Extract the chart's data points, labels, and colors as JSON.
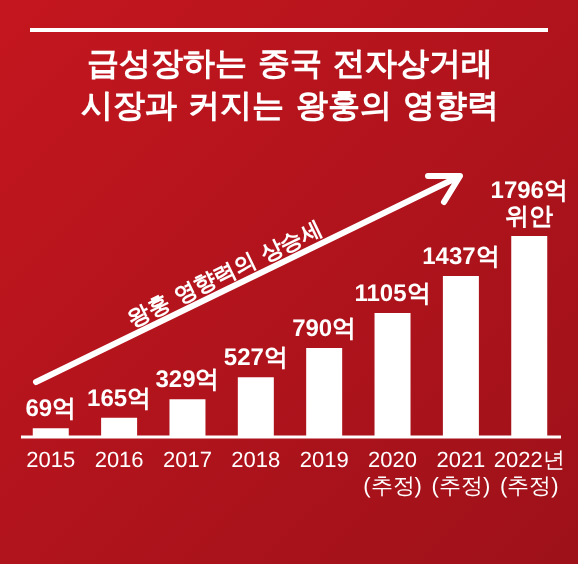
{
  "chart_data": {
    "type": "bar",
    "title": "급성장하는 중국 전자상거래\n시장과 커지는 왕훙의 영향력",
    "categories": [
      "2015",
      "2016",
      "2017",
      "2018",
      "2019",
      "2020\n(추정)",
      "2021\n(추정)",
      "2022년\n(추정)"
    ],
    "values": [
      69,
      165,
      329,
      527,
      790,
      1105,
      1437,
      1796
    ],
    "value_labels": [
      "69억",
      "165억",
      "329억",
      "527억",
      "790억",
      "1105억",
      "1437억",
      "1796억\n위안"
    ],
    "color": "#ffffff",
    "annotations": [
      "왕훙 영향력의 상승세"
    ]
  }
}
